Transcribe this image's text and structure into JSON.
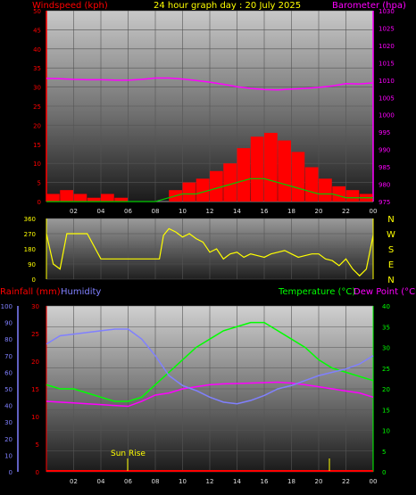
{
  "header": {
    "title": "24 hour graph day : 20 July 2025"
  },
  "chart_data": [
    {
      "type": "line",
      "left_label": "Windspeed (kph)",
      "right_label": "Barometer (hpa)",
      "left_ylim": [
        0,
        50
      ],
      "left_ticks": [
        0,
        5,
        10,
        15,
        20,
        25,
        30,
        35,
        40,
        45,
        50
      ],
      "right_ylim": [
        975,
        1030
      ],
      "right_ticks": [
        975,
        980,
        985,
        990,
        995,
        1000,
        1005,
        1010,
        1015,
        1020,
        1025,
        1030
      ],
      "x_ticks": [
        "02",
        "04",
        "06",
        "08",
        "10",
        "12",
        "14",
        "16",
        "18",
        "20",
        "22",
        "00"
      ],
      "colors": {
        "wind": "#ff0000",
        "barometer": "#ff00ff",
        "gust_avg": "#00cc00",
        "wind_avg": "#ffffff"
      },
      "series": [
        {
          "key": "barometer",
          "x": [
            0,
            1,
            2,
            3,
            4,
            5,
            6,
            7,
            8,
            9,
            10,
            11,
            12,
            13,
            14,
            15,
            16,
            17,
            18,
            19,
            20,
            21,
            22,
            23,
            24
          ],
          "values": [
            1010.5,
            1010.4,
            1010.2,
            1010.1,
            1010.1,
            1010.0,
            1010.0,
            1010.2,
            1010.6,
            1010.6,
            1010.3,
            1009.9,
            1009.4,
            1008.8,
            1008.1,
            1007.6,
            1007.3,
            1007.2,
            1007.4,
            1007.6,
            1007.9,
            1008.3,
            1009.0,
            1008.9,
            1009.2
          ]
        },
        {
          "key": "wind",
          "x": [
            0,
            1,
            2,
            3,
            4,
            5,
            6,
            7,
            8,
            9,
            10,
            11,
            12,
            13,
            14,
            15,
            16,
            17,
            18,
            19,
            20,
            21,
            22,
            23,
            24
          ],
          "values": [
            2,
            3,
            2,
            1,
            2,
            1,
            0,
            0,
            0,
            3,
            5,
            6,
            8,
            10,
            14,
            17,
            18,
            16,
            13,
            9,
            6,
            4,
            3,
            2,
            2
          ]
        },
        {
          "key": "gust_avg",
          "x": [
            0,
            2,
            4,
            6,
            8,
            9,
            10,
            11,
            12,
            13,
            14,
            15,
            16,
            17,
            18,
            19,
            20,
            21,
            22,
            23,
            24
          ],
          "values": [
            0,
            0,
            0,
            0,
            0,
            1,
            2,
            2,
            3,
            4,
            5,
            6,
            6,
            5,
            4,
            3,
            2,
            2,
            1,
            1,
            1
          ]
        }
      ]
    },
    {
      "type": "line",
      "ylim": [
        0,
        360
      ],
      "left_ticks": [
        0,
        90,
        180,
        270,
        360
      ],
      "compass": [
        "N",
        "W",
        "S",
        "E",
        "N"
      ],
      "color": "#ffff00",
      "series": [
        {
          "key": "direction",
          "x": [
            0,
            0.5,
            1,
            1.5,
            2,
            3,
            4,
            5,
            6,
            7,
            8,
            8.3,
            8.6,
            9,
            9.5,
            10,
            10.5,
            11,
            11.5,
            12,
            12.5,
            13,
            13.5,
            14,
            14.5,
            15,
            15.5,
            16,
            16.5,
            17,
            17.5,
            18,
            18.5,
            19,
            19.5,
            20,
            20.5,
            21,
            21.5,
            22,
            22.5,
            23,
            23.5,
            24
          ],
          "values": [
            270,
            90,
            60,
            270,
            270,
            270,
            120,
            120,
            120,
            120,
            120,
            120,
            260,
            300,
            280,
            250,
            270,
            240,
            220,
            160,
            180,
            120,
            150,
            160,
            130,
            150,
            140,
            130,
            150,
            160,
            170,
            150,
            130,
            140,
            150,
            150,
            120,
            110,
            80,
            120,
            60,
            20,
            60,
            260
          ]
        }
      ]
    },
    {
      "type": "line",
      "left_label": "Rainfall (mm)",
      "left2_label": "Humidity",
      "right_label": "Temperature (°C)",
      "right2_label": "Dew Point (°C)",
      "rain_ticks": [
        0,
        5,
        10,
        15,
        20,
        25,
        30
      ],
      "humidity_ticks": [
        0,
        10,
        20,
        30,
        40,
        50,
        60,
        70,
        80,
        90,
        100
      ],
      "temp_ticks": [
        0,
        5,
        10,
        15,
        20,
        25,
        30,
        35,
        40
      ],
      "humidity_ylim": [
        0,
        100
      ],
      "temp_ylim": [
        0,
        40
      ],
      "x_ticks": [
        "02",
        "04",
        "06",
        "08",
        "10",
        "12",
        "14",
        "16",
        "18",
        "20",
        "22",
        "00"
      ],
      "annotation": "Sun Rise",
      "colors": {
        "rain": "#ff0000",
        "humidity": "#8080ff",
        "temperature": "#00ff00",
        "dewpoint": "#ff00ff"
      },
      "series": [
        {
          "key": "humidity",
          "x": [
            0,
            1,
            2,
            3,
            4,
            5,
            6,
            7,
            8,
            9,
            10,
            11,
            12,
            13,
            14,
            15,
            16,
            17,
            18,
            19,
            20,
            21,
            22,
            23,
            24
          ],
          "values": [
            77,
            82,
            83,
            84,
            85,
            86,
            86,
            80,
            70,
            58,
            52,
            49,
            45,
            42,
            41,
            43,
            46,
            50,
            52,
            55,
            58,
            60,
            62,
            65,
            70
          ]
        },
        {
          "key": "temperature",
          "x": [
            0,
            1,
            2,
            3,
            4,
            5,
            6,
            7,
            8,
            9,
            10,
            11,
            12,
            13,
            14,
            15,
            16,
            17,
            18,
            19,
            20,
            21,
            22,
            23,
            24
          ],
          "values": [
            21,
            20,
            20,
            19,
            18,
            17,
            17,
            18,
            21,
            24,
            27,
            30,
            32,
            34,
            35,
            36,
            36,
            34,
            32,
            30,
            27,
            25,
            24,
            23,
            22
          ]
        },
        {
          "key": "dewpoint",
          "x": [
            0,
            1,
            2,
            3,
            4,
            5,
            6,
            7,
            8,
            9,
            10,
            11,
            12,
            13,
            14,
            15,
            16,
            17,
            18,
            19,
            20,
            21,
            22,
            23,
            24
          ],
          "values": [
            17,
            16.8,
            16.6,
            16.4,
            16.2,
            16,
            15.8,
            17,
            18.5,
            19,
            20,
            20.5,
            21,
            21.2,
            21.3,
            21.4,
            21.5,
            21.6,
            21.4,
            21,
            20.5,
            20,
            19.5,
            19,
            18
          ]
        },
        {
          "key": "rain",
          "x": [
            0,
            24
          ],
          "values": [
            0,
            0
          ]
        }
      ]
    }
  ]
}
